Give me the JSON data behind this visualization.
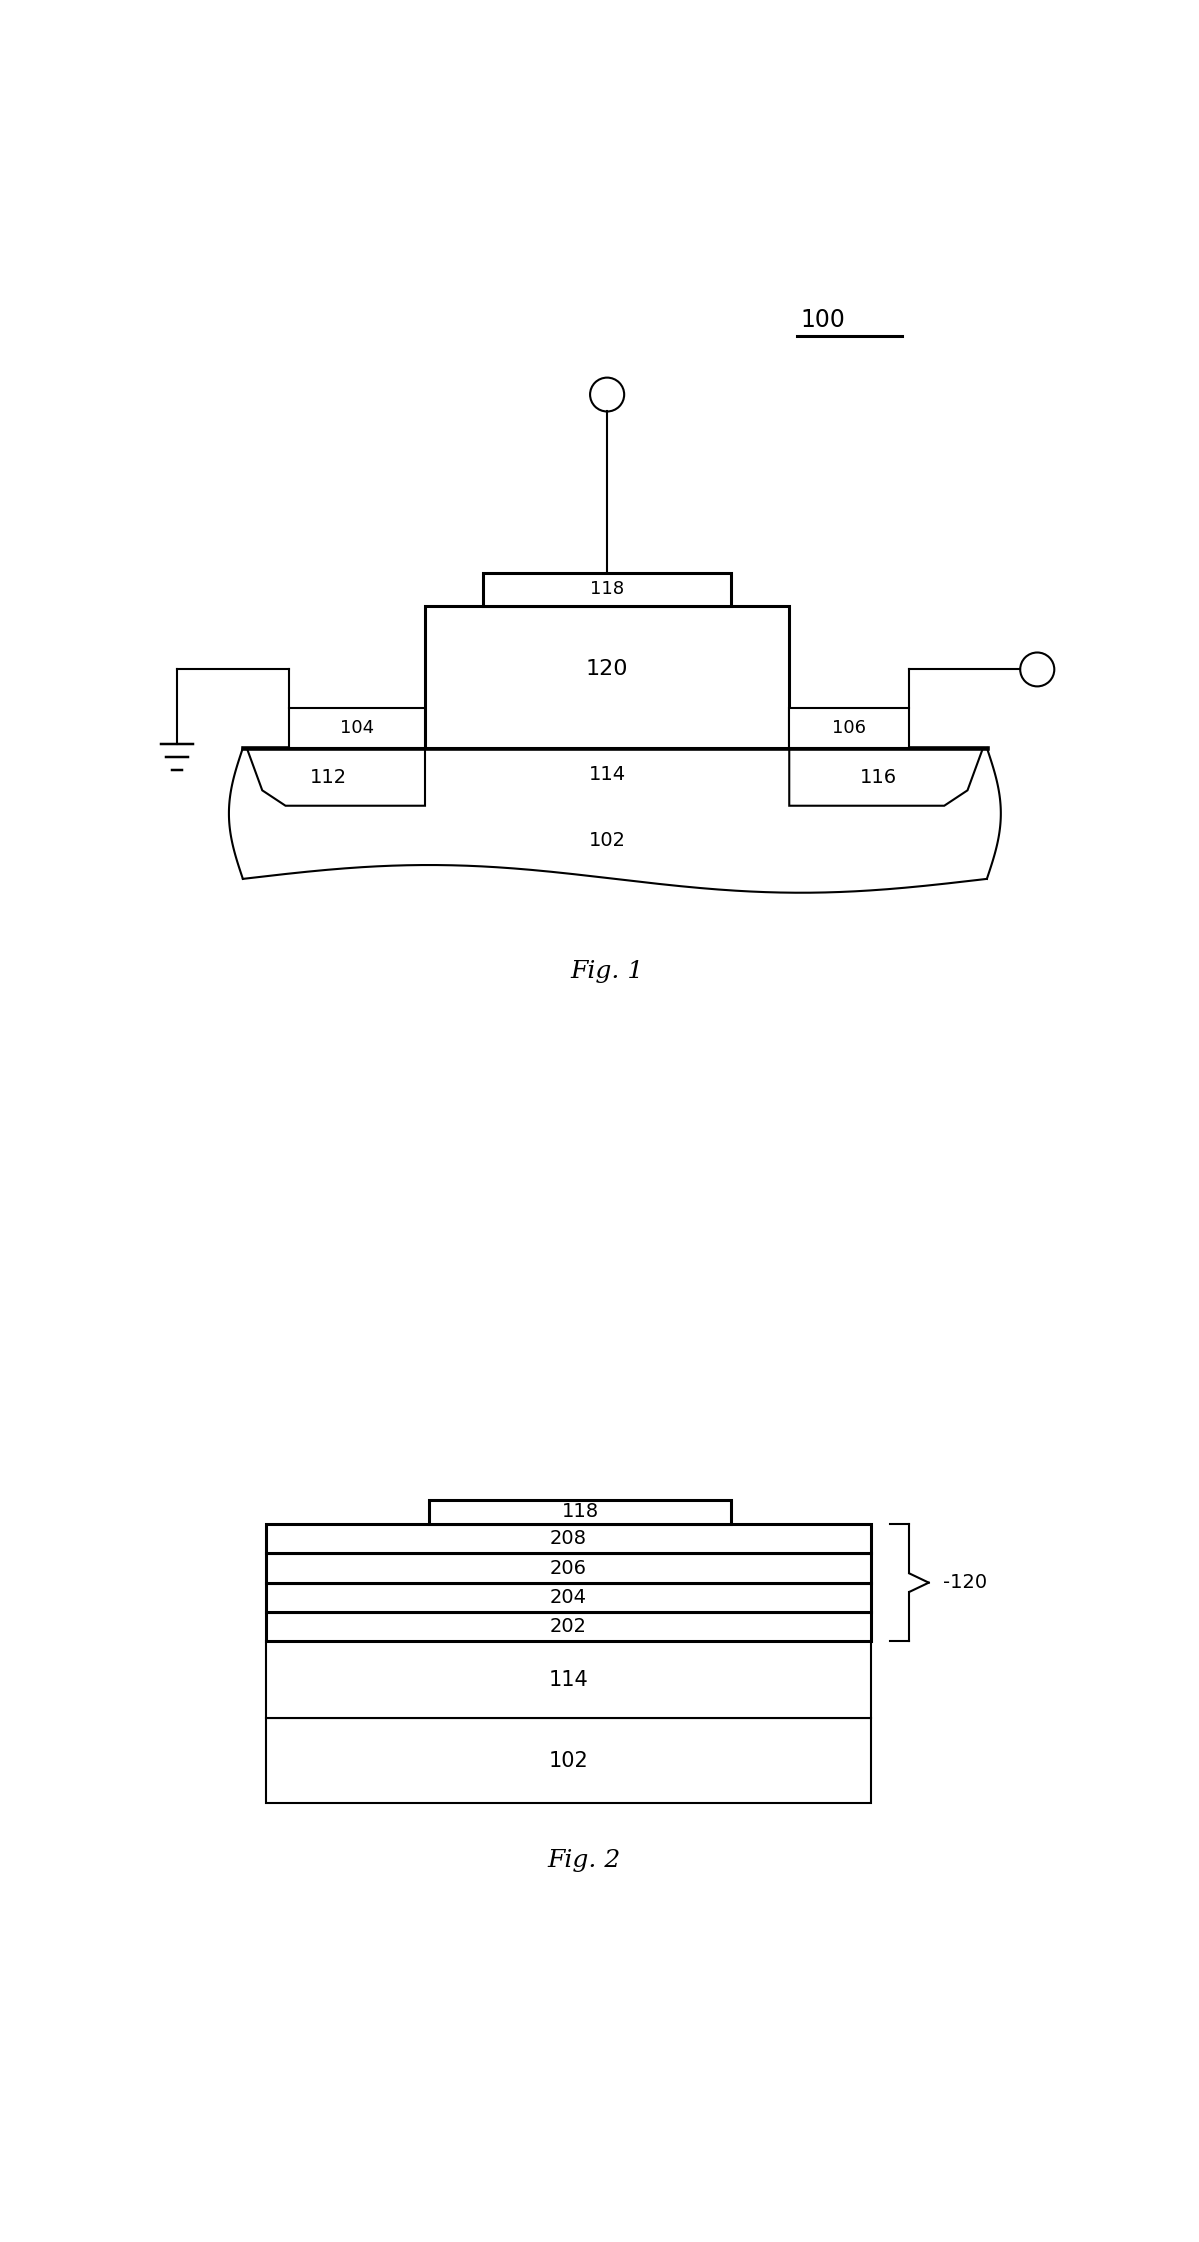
{
  "fig1": {
    "label": "100",
    "substrate_label": "102",
    "channel_label": "114",
    "source_region_label": "112",
    "drain_region_label": "116",
    "source_contact_label": "104",
    "drain_contact_label": "106",
    "gate_stack_label": "120",
    "gate_electrode_label": "118",
    "fig_caption": "Fig. 1"
  },
  "fig2": {
    "layers_thin": [
      "208",
      "206",
      "204",
      "202"
    ],
    "layers_thick": [
      "114",
      "102"
    ],
    "brace_label": "120",
    "gate_label": "118",
    "fig_caption": "Fig. 2"
  },
  "bg_color": "#ffffff",
  "line_color": "#000000",
  "box_fill": "#ffffff",
  "font_size_label": 13,
  "font_size_caption": 18,
  "font_size_ref": 15
}
